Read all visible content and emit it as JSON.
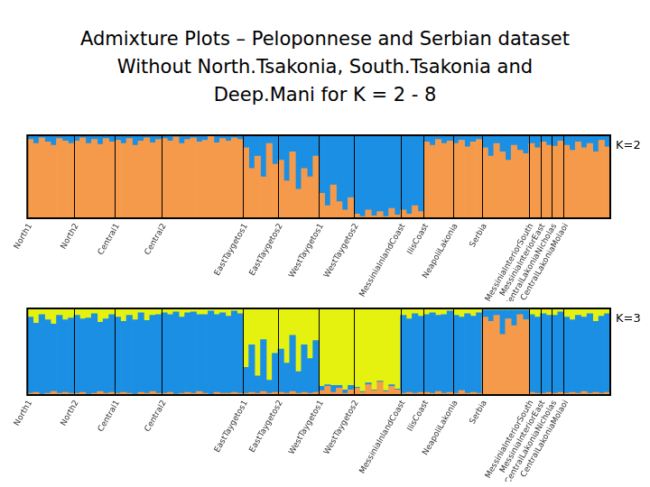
{
  "title": [
    "Admixture Plots – Peloponnese and Serbian dataset",
    "Without North.Tsakonia, South.Tsakonia and",
    "Deep.Mani for K = 2 - 8"
  ],
  "chart_data": [
    {
      "type": "bar",
      "stacked": true,
      "annotation": "K=2",
      "grid": false,
      "tick_labels": "x",
      "ylim": [
        0,
        1
      ],
      "categories": [
        "North1",
        null,
        null,
        null,
        null,
        null,
        null,
        null,
        "North2",
        null,
        null,
        null,
        null,
        null,
        null,
        "Central1",
        null,
        null,
        null,
        null,
        null,
        null,
        null,
        "Central2",
        null,
        null,
        null,
        null,
        null,
        null,
        null,
        null,
        null,
        null,
        null,
        null,
        null,
        "EastTaygetos1",
        null,
        null,
        null,
        null,
        null,
        "EastTaygetos2",
        null,
        null,
        null,
        null,
        null,
        null,
        "WestTaygetos1",
        null,
        null,
        null,
        null,
        null,
        "WestTaygetos2",
        null,
        null,
        null,
        null,
        null,
        null,
        null,
        "MessiniaInlandCoast",
        null,
        null,
        null,
        "IlisCoast",
        null,
        null,
        null,
        null,
        "NeapoliLakonia",
        null,
        null,
        null,
        null,
        "Serbia",
        null,
        null,
        null,
        null,
        null,
        null,
        null,
        "MessiniaInteriorSouth",
        null,
        "MessiniaInteriorEast",
        null,
        "CentralLakoniaNicholas",
        null,
        "CentralLakoniaMolaoi",
        null,
        null,
        null,
        null,
        null,
        null,
        null
      ],
      "series": [
        {
          "color": "#f59a4a",
          "values": [
            0.95,
            0.9,
            0.97,
            0.92,
            0.88,
            0.96,
            0.93,
            0.9,
            0.93,
            0.97,
            0.9,
            0.95,
            0.89,
            0.96,
            0.92,
            0.94,
            0.9,
            0.96,
            0.88,
            0.93,
            0.97,
            0.91,
            0.95,
            0.96,
            0.93,
            0.98,
            0.9,
            0.95,
            0.97,
            0.92,
            0.94,
            0.99,
            0.91,
            0.96,
            0.93,
            0.97,
            0.95,
            0.85,
            0.6,
            0.75,
            0.5,
            0.9,
            0.65,
            0.7,
            0.45,
            0.8,
            0.35,
            0.6,
            0.5,
            0.75,
            0.3,
            0.15,
            0.4,
            0.2,
            0.1,
            0.25,
            0.05,
            0.02,
            0.1,
            0.03,
            0.08,
            0.02,
            0.12,
            0.04,
            0.1,
            0.05,
            0.15,
            0.08,
            0.92,
            0.88,
            0.95,
            0.9,
            0.93,
            0.9,
            0.94,
            0.86,
            0.92,
            0.95,
            0.85,
            0.75,
            0.9,
            0.8,
            0.7,
            0.88,
            0.82,
            0.78,
            0.9,
            0.85,
            0.92,
            0.88,
            0.87,
            0.93,
            0.88,
            0.82,
            0.92,
            0.85,
            0.9,
            0.8,
            0.94,
            0.86
          ]
        },
        {
          "color": "#1a8fe3",
          "values": [
            0.05,
            0.1,
            0.03,
            0.08,
            0.12,
            0.04,
            0.07,
            0.1,
            0.07,
            0.03,
            0.1,
            0.05,
            0.11,
            0.04,
            0.08,
            0.06,
            0.1,
            0.04,
            0.12,
            0.07,
            0.03,
            0.09,
            0.05,
            0.04,
            0.07,
            0.02,
            0.1,
            0.05,
            0.03,
            0.08,
            0.06,
            0.01,
            0.09,
            0.04,
            0.07,
            0.03,
            0.05,
            0.15,
            0.4,
            0.25,
            0.5,
            0.1,
            0.35,
            0.3,
            0.55,
            0.2,
            0.65,
            0.4,
            0.5,
            0.25,
            0.7,
            0.85,
            0.6,
            0.8,
            0.9,
            0.75,
            0.95,
            0.98,
            0.9,
            0.97,
            0.92,
            0.98,
            0.88,
            0.96,
            0.9,
            0.95,
            0.85,
            0.92,
            0.08,
            0.12,
            0.05,
            0.1,
            0.07,
            0.1,
            0.06,
            0.14,
            0.08,
            0.05,
            0.15,
            0.25,
            0.1,
            0.2,
            0.3,
            0.12,
            0.18,
            0.22,
            0.1,
            0.15,
            0.08,
            0.12,
            0.13,
            0.07,
            0.12,
            0.18,
            0.08,
            0.15,
            0.1,
            0.2,
            0.06,
            0.14
          ]
        }
      ]
    },
    {
      "type": "bar",
      "stacked": true,
      "annotation": "K=3",
      "grid": false,
      "tick_labels": "x",
      "ylim": [
        0,
        1
      ],
      "categories": [
        "North1",
        null,
        null,
        null,
        null,
        null,
        null,
        null,
        "North2",
        null,
        null,
        null,
        null,
        null,
        null,
        "Central1",
        null,
        null,
        null,
        null,
        null,
        null,
        null,
        "Central2",
        null,
        null,
        null,
        null,
        null,
        null,
        null,
        null,
        null,
        null,
        null,
        null,
        null,
        "EastTaygetos1",
        null,
        null,
        null,
        null,
        null,
        "EastTaygetos2",
        null,
        null,
        null,
        null,
        null,
        null,
        "WestTaygetos1",
        null,
        null,
        null,
        null,
        null,
        "WestTaygetos2",
        null,
        null,
        null,
        null,
        null,
        null,
        null,
        "MessiniaInlandCoast",
        null,
        null,
        null,
        "IlisCoast",
        null,
        null,
        null,
        null,
        "NeapoliLakonia",
        null,
        null,
        null,
        null,
        "Serbia",
        null,
        null,
        null,
        null,
        null,
        null,
        null,
        "MessiniaInteriorSouth",
        null,
        "MessiniaInteriorEast",
        null,
        "CentralLakoniaNicholas",
        null,
        "CentralLakoniaMolaoi",
        null,
        null,
        null,
        null,
        null,
        null,
        null
      ],
      "series": [
        {
          "color": "#f59a4a",
          "values": [
            0.02,
            0.03,
            0.01,
            0.02,
            0.04,
            0.02,
            0.03,
            0.02,
            0.02,
            0.03,
            0.01,
            0.02,
            0.04,
            0.02,
            0.03,
            0.02,
            0.03,
            0.02,
            0.01,
            0.03,
            0.02,
            0.04,
            0.02,
            0.02,
            0.03,
            0.01,
            0.02,
            0.03,
            0.02,
            0.04,
            0.02,
            0.01,
            0.03,
            0.02,
            0.02,
            0.03,
            0.02,
            0.02,
            0.03,
            0.02,
            0.04,
            0.02,
            0.03,
            0.03,
            0.02,
            0.04,
            0.02,
            0.03,
            0.02,
            0.03,
            0.05,
            0.1,
            0.03,
            0.08,
            0.02,
            0.06,
            0.08,
            0.03,
            0.12,
            0.05,
            0.15,
            0.04,
            0.1,
            0.06,
            0.02,
            0.03,
            0.02,
            0.03,
            0.03,
            0.02,
            0.04,
            0.02,
            0.03,
            0.02,
            0.05,
            0.02,
            0.03,
            0.02,
            0.9,
            0.85,
            0.92,
            0.7,
            0.88,
            0.8,
            0.93,
            0.87,
            0.03,
            0.02,
            0.02,
            0.03,
            0.02,
            0.03,
            0.02,
            0.03,
            0.02,
            0.04,
            0.02,
            0.03,
            0.02,
            0.03
          ]
        },
        {
          "color": "#1a8fe3",
          "values": [
            0.88,
            0.8,
            0.92,
            0.85,
            0.78,
            0.9,
            0.84,
            0.87,
            0.9,
            0.85,
            0.88,
            0.92,
            0.8,
            0.86,
            0.9,
            0.88,
            0.82,
            0.9,
            0.86,
            0.92,
            0.84,
            0.88,
            0.91,
            0.93,
            0.9,
            0.95,
            0.88,
            0.92,
            0.94,
            0.89,
            0.91,
            0.96,
            0.9,
            0.93,
            0.89,
            0.94,
            0.92,
            0.3,
            0.55,
            0.2,
            0.6,
            0.15,
            0.45,
            0.5,
            0.35,
            0.65,
            0.25,
            0.55,
            0.4,
            0.6,
            0.05,
            0.02,
            0.08,
            0.03,
            0.04,
            0.05,
            0.01,
            0.01,
            0.02,
            0.01,
            0.01,
            0.01,
            0.02,
            0.01,
            0.9,
            0.85,
            0.92,
            0.88,
            0.9,
            0.93,
            0.88,
            0.91,
            0.94,
            0.9,
            0.85,
            0.92,
            0.88,
            0.93,
            0.08,
            0.13,
            0.06,
            0.28,
            0.1,
            0.18,
            0.05,
            0.11,
            0.9,
            0.88,
            0.92,
            0.89,
            0.9,
            0.93,
            0.88,
            0.84,
            0.9,
            0.86,
            0.92,
            0.82,
            0.89,
            0.91
          ]
        },
        {
          "color": "#e5f20f",
          "values": [
            0.1,
            0.17,
            0.07,
            0.13,
            0.18,
            0.08,
            0.13,
            0.11,
            0.08,
            0.12,
            0.11,
            0.06,
            0.16,
            0.12,
            0.07,
            0.1,
            0.15,
            0.08,
            0.13,
            0.05,
            0.14,
            0.08,
            0.07,
            0.05,
            0.07,
            0.04,
            0.1,
            0.05,
            0.04,
            0.07,
            0.07,
            0.03,
            0.07,
            0.05,
            0.09,
            0.03,
            0.06,
            0.68,
            0.42,
            0.78,
            0.36,
            0.83,
            0.52,
            0.47,
            0.63,
            0.31,
            0.73,
            0.42,
            0.58,
            0.37,
            0.9,
            0.88,
            0.89,
            0.89,
            0.94,
            0.89,
            0.91,
            0.96,
            0.86,
            0.94,
            0.84,
            0.95,
            0.88,
            0.93,
            0.08,
            0.12,
            0.06,
            0.09,
            0.07,
            0.05,
            0.08,
            0.07,
            0.03,
            0.08,
            0.1,
            0.06,
            0.09,
            0.05,
            0.02,
            0.02,
            0.02,
            0.02,
            0.02,
            0.02,
            0.02,
            0.02,
            0.07,
            0.1,
            0.06,
            0.08,
            0.08,
            0.04,
            0.1,
            0.13,
            0.08,
            0.1,
            0.06,
            0.15,
            0.09,
            0.06
          ]
        }
      ]
    }
  ]
}
